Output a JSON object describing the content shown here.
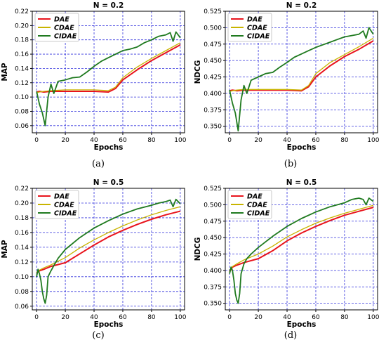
{
  "figure": {
    "captions": [
      "(a)",
      "(b)",
      "(c)",
      "(d)"
    ]
  },
  "colors": {
    "DAE": "#e8141c",
    "CDAE": "#c8b400",
    "CIDAE": "#1f7a1f",
    "grid": "#3333dd"
  },
  "chart_data": [
    {
      "type": "line",
      "title": "N = 0.2",
      "xlabel": "Epochs",
      "ylabel": "MAP",
      "xlim": [
        -3,
        103
      ],
      "ylim": [
        0.05,
        0.22
      ],
      "xticks": [
        "0",
        "20",
        "40",
        "60",
        "80",
        "100"
      ],
      "yticks": [
        "0.06",
        "0.08",
        "0.10",
        "0.12",
        "0.14",
        "0.16",
        "0.18",
        "0.20",
        "0.22"
      ],
      "grid": true,
      "legend": "top-left",
      "series": [
        {
          "name": "DAE",
          "x": [
            0,
            2,
            5,
            10,
            20,
            30,
            40,
            50,
            55,
            60,
            70,
            80,
            90,
            100
          ],
          "y": [
            0.107,
            0.108,
            0.107,
            0.108,
            0.108,
            0.108,
            0.108,
            0.107,
            0.112,
            0.124,
            0.138,
            0.151,
            0.162,
            0.173
          ]
        },
        {
          "name": "CDAE",
          "x": [
            0,
            2,
            5,
            10,
            20,
            30,
            40,
            50,
            55,
            60,
            70,
            80,
            90,
            100
          ],
          "y": [
            0.106,
            0.107,
            0.108,
            0.109,
            0.11,
            0.11,
            0.11,
            0.109,
            0.114,
            0.127,
            0.142,
            0.154,
            0.165,
            0.176
          ]
        },
        {
          "name": "CIDAE",
          "x": [
            0,
            2,
            4,
            6,
            8,
            10,
            12,
            15,
            20,
            25,
            30,
            35,
            40,
            45,
            50,
            55,
            60,
            65,
            70,
            75,
            80,
            85,
            90,
            93,
            95,
            97,
            100
          ],
          "y": [
            0.108,
            0.09,
            0.078,
            0.06,
            0.1,
            0.118,
            0.105,
            0.122,
            0.124,
            0.127,
            0.128,
            0.135,
            0.143,
            0.15,
            0.155,
            0.16,
            0.165,
            0.167,
            0.17,
            0.176,
            0.18,
            0.185,
            0.187,
            0.19,
            0.178,
            0.191,
            0.183
          ]
        }
      ]
    },
    {
      "type": "line",
      "title": "N = 0.2",
      "xlabel": "Epochs",
      "ylabel": "NDCG",
      "xlim": [
        -3,
        103
      ],
      "ylim": [
        0.34,
        0.525
      ],
      "xticks": [
        "0",
        "20",
        "40",
        "60",
        "80",
        "100"
      ],
      "yticks": [
        "0.350",
        "0.375",
        "0.400",
        "0.425",
        "0.450",
        "0.475",
        "0.500",
        "0.525"
      ],
      "grid": true,
      "legend": "top-left",
      "series": [
        {
          "name": "DAE",
          "x": [
            0,
            2,
            5,
            10,
            20,
            30,
            40,
            50,
            55,
            60,
            70,
            80,
            90,
            100
          ],
          "y": [
            0.404,
            0.405,
            0.404,
            0.405,
            0.405,
            0.405,
            0.405,
            0.404,
            0.41,
            0.425,
            0.442,
            0.456,
            0.467,
            0.48
          ]
        },
        {
          "name": "CDAE",
          "x": [
            0,
            2,
            5,
            10,
            20,
            30,
            40,
            50,
            55,
            60,
            70,
            80,
            90,
            100
          ],
          "y": [
            0.403,
            0.404,
            0.405,
            0.406,
            0.406,
            0.406,
            0.406,
            0.405,
            0.412,
            0.43,
            0.447,
            0.459,
            0.471,
            0.484
          ]
        },
        {
          "name": "CIDAE",
          "x": [
            0,
            2,
            4,
            6,
            8,
            10,
            12,
            15,
            20,
            25,
            30,
            35,
            40,
            45,
            50,
            55,
            60,
            65,
            70,
            75,
            80,
            85,
            90,
            93,
            95,
            97,
            100
          ],
          "y": [
            0.405,
            0.385,
            0.37,
            0.343,
            0.39,
            0.412,
            0.4,
            0.42,
            0.425,
            0.43,
            0.432,
            0.44,
            0.447,
            0.455,
            0.46,
            0.465,
            0.47,
            0.474,
            0.478,
            0.482,
            0.486,
            0.488,
            0.49,
            0.495,
            0.484,
            0.5,
            0.49
          ]
        }
      ]
    },
    {
      "type": "line",
      "title": "N = 0.5",
      "xlabel": "Epochs",
      "ylabel": "MAP",
      "xlim": [
        -3,
        103
      ],
      "ylim": [
        0.055,
        0.22
      ],
      "xticks": [
        "0",
        "20",
        "40",
        "60",
        "80",
        "100"
      ],
      "yticks": [
        "0.06",
        "0.08",
        "0.10",
        "0.12",
        "0.14",
        "0.16",
        "0.18",
        "0.20",
        "0.22"
      ],
      "grid": true,
      "legend": "top-left",
      "series": [
        {
          "name": "DAE",
          "x": [
            0,
            2,
            5,
            10,
            20,
            30,
            40,
            50,
            60,
            70,
            80,
            90,
            100
          ],
          "y": [
            0.105,
            0.108,
            0.11,
            0.114,
            0.119,
            0.131,
            0.143,
            0.154,
            0.163,
            0.171,
            0.178,
            0.184,
            0.189
          ]
        },
        {
          "name": "CDAE",
          "x": [
            0,
            2,
            5,
            10,
            20,
            30,
            40,
            50,
            60,
            70,
            80,
            90,
            100
          ],
          "y": [
            0.106,
            0.109,
            0.112,
            0.116,
            0.126,
            0.139,
            0.15,
            0.16,
            0.169,
            0.177,
            0.184,
            0.19,
            0.195
          ]
        },
        {
          "name": "CIDAE",
          "x": [
            0,
            1,
            2,
            3,
            4,
            5,
            6,
            7,
            8,
            10,
            12,
            15,
            20,
            30,
            40,
            50,
            60,
            70,
            80,
            85,
            90,
            93,
            95,
            97,
            100
          ],
          "y": [
            0.1,
            0.11,
            0.104,
            0.095,
            0.08,
            0.07,
            0.064,
            0.075,
            0.1,
            0.108,
            0.115,
            0.125,
            0.137,
            0.153,
            0.166,
            0.176,
            0.185,
            0.192,
            0.197,
            0.2,
            0.202,
            0.204,
            0.195,
            0.205,
            0.199
          ]
        }
      ]
    },
    {
      "type": "line",
      "title": "N = 0.5",
      "xlabel": "Epochs",
      "ylabel": "NDCG",
      "xlim": [
        -3,
        103
      ],
      "ylim": [
        0.34,
        0.525
      ],
      "xticks": [
        "0",
        "20",
        "40",
        "60",
        "80",
        "100"
      ],
      "yticks": [
        "0.350",
        "0.375",
        "0.400",
        "0.425",
        "0.450",
        "0.475",
        "0.500",
        "0.525"
      ],
      "grid": true,
      "legend": "top-left",
      "series": [
        {
          "name": "DAE",
          "x": [
            0,
            2,
            5,
            10,
            20,
            30,
            40,
            50,
            60,
            70,
            80,
            90,
            100
          ],
          "y": [
            0.398,
            0.405,
            0.408,
            0.412,
            0.418,
            0.43,
            0.445,
            0.457,
            0.467,
            0.476,
            0.484,
            0.49,
            0.496
          ]
        },
        {
          "name": "CDAE",
          "x": [
            0,
            2,
            5,
            10,
            20,
            30,
            40,
            50,
            60,
            70,
            80,
            90,
            100
          ],
          "y": [
            0.4,
            0.406,
            0.41,
            0.416,
            0.425,
            0.437,
            0.451,
            0.462,
            0.472,
            0.48,
            0.487,
            0.493,
            0.499
          ]
        },
        {
          "name": "CIDAE",
          "x": [
            0,
            1,
            2,
            3,
            4,
            5,
            6,
            7,
            8,
            10,
            12,
            15,
            20,
            30,
            40,
            50,
            60,
            70,
            80,
            85,
            90,
            93,
            95,
            97,
            100
          ],
          "y": [
            0.395,
            0.405,
            0.4,
            0.385,
            0.365,
            0.355,
            0.35,
            0.365,
            0.395,
            0.41,
            0.418,
            0.425,
            0.435,
            0.452,
            0.467,
            0.479,
            0.489,
            0.497,
            0.503,
            0.508,
            0.51,
            0.508,
            0.5,
            0.51,
            0.505
          ]
        }
      ]
    }
  ]
}
